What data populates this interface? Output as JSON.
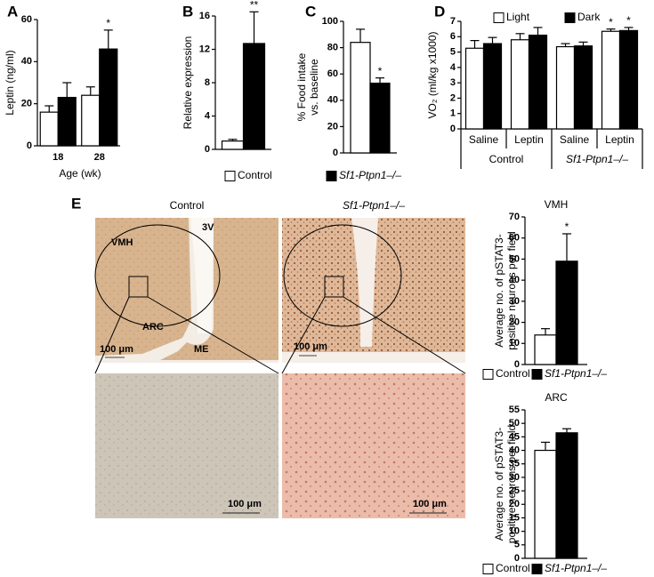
{
  "panel_labels": [
    "A",
    "B",
    "C",
    "D",
    "E"
  ],
  "shared_legend": [
    {
      "name": "Control",
      "color": "#ffffff"
    },
    {
      "name": "Sf1-Ptpn1–/–",
      "color": "#000000"
    }
  ],
  "micrographs": {
    "titles": [
      "Control",
      "Sf1-Ptpn1–/–"
    ],
    "region_labels": [
      "3V",
      "VMH",
      "ARC",
      "ME"
    ],
    "scale_bars": [
      "100 μm",
      "100 μm",
      "100 μm",
      "100 μm"
    ]
  },
  "chart_data": [
    {
      "type": "bar",
      "y_label": "Leptin (ng/ml)",
      "x_label": "Age (wk)",
      "categories": [
        "18",
        "28"
      ],
      "series": [
        {
          "color": "#ffffff",
          "values": [
            16,
            24
          ],
          "errors": [
            3,
            4
          ],
          "significance": [
            null,
            null
          ]
        },
        {
          "color": "#000000",
          "values": [
            23,
            46
          ],
          "errors": [
            7,
            9
          ],
          "significance": [
            null,
            "*"
          ]
        }
      ],
      "ylim": [
        0,
        60
      ],
      "yticks": [
        0,
        20,
        40,
        60
      ]
    },
    {
      "type": "bar",
      "y_label": "Relative expression",
      "categories": [
        null
      ],
      "series": [
        {
          "color": "#ffffff",
          "values": [
            1
          ],
          "errors": [
            0.2
          ],
          "significance": [
            null
          ]
        },
        {
          "color": "#000000",
          "values": [
            12.7
          ],
          "errors": [
            3.8
          ],
          "significance": [
            "**"
          ]
        }
      ],
      "ylim": [
        0,
        16
      ],
      "yticks": [
        0,
        4,
        8,
        12,
        16
      ]
    },
    {
      "type": "bar",
      "y_label": [
        "% Food intake",
        "vs. baseline"
      ],
      "categories": [
        null
      ],
      "series": [
        {
          "color": "#ffffff",
          "values": [
            84
          ],
          "errors": [
            10
          ],
          "significance": [
            null
          ]
        },
        {
          "color": "#000000",
          "values": [
            53
          ],
          "errors": [
            4
          ],
          "significance": [
            "*"
          ]
        }
      ],
      "ylim": [
        0,
        100
      ],
      "yticks": [
        0,
        20,
        40,
        60,
        80,
        100
      ]
    },
    {
      "type": "bar",
      "y_label": "VO₂ (ml/kg x1000)",
      "categories": [
        "Saline",
        "Leptin",
        "Saline",
        "Leptin"
      ],
      "group_labels": [
        "Control",
        "Sf1-Ptpn1–/–"
      ],
      "series": [
        {
          "name": "Light",
          "color": "#ffffff",
          "values": [
            5.25,
            5.8,
            5.35,
            6.35
          ],
          "errors": [
            0.5,
            0.4,
            0.2,
            0.15
          ],
          "significance": [
            null,
            null,
            null,
            "*"
          ]
        },
        {
          "name": "Dark",
          "color": "#000000",
          "values": [
            5.55,
            6.1,
            5.4,
            6.4
          ],
          "errors": [
            0.4,
            0.5,
            0.25,
            0.2
          ],
          "significance": [
            null,
            null,
            null,
            "*"
          ]
        }
      ],
      "ylim": [
        0,
        7
      ],
      "yticks": [
        0,
        1,
        2,
        3,
        4,
        5,
        6,
        7
      ]
    },
    {
      "type": "bar",
      "title": "VMH",
      "y_label": [
        "Average no. of pSTAT3-",
        "positive neurons per field"
      ],
      "categories": [
        null
      ],
      "series": [
        {
          "name": "Control",
          "color": "#ffffff",
          "values": [
            14
          ],
          "errors": [
            3
          ],
          "significance": [
            null
          ]
        },
        {
          "name": "Sf1-Ptpn1–/–",
          "color": "#000000",
          "values": [
            49
          ],
          "errors": [
            13
          ],
          "significance": [
            "*"
          ]
        }
      ],
      "ylim": [
        0,
        70
      ],
      "yticks": [
        0,
        10,
        20,
        30,
        40,
        50,
        60,
        70
      ]
    },
    {
      "type": "bar",
      "title": "ARC",
      "y_label": [
        "Average no. of pSTAT3-",
        "positive neurons per field"
      ],
      "categories": [
        null
      ],
      "series": [
        {
          "name": "Control",
          "color": "#ffffff",
          "values": [
            40
          ],
          "errors": [
            3
          ],
          "significance": [
            null
          ]
        },
        {
          "name": "Sf1-Ptpn1–/–",
          "color": "#000000",
          "values": [
            46.5
          ],
          "errors": [
            1.5
          ],
          "significance": [
            null
          ]
        }
      ],
      "ylim": [
        0,
        55
      ],
      "yticks": [
        0,
        5,
        10,
        15,
        20,
        25,
        30,
        35,
        40,
        45,
        50,
        55
      ]
    }
  ]
}
